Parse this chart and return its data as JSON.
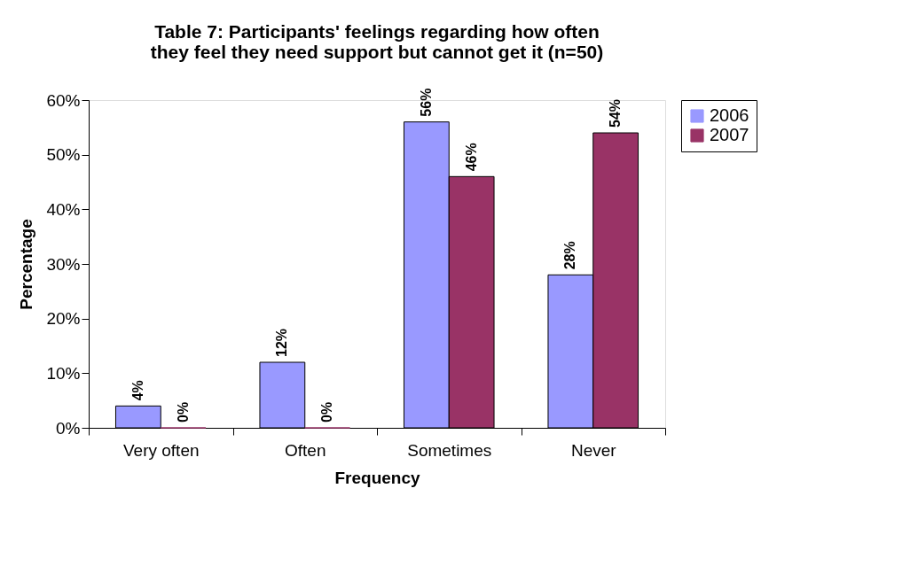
{
  "chart_data": {
    "type": "bar",
    "title": [
      "Table 7: Participants' feelings regarding how often",
      "they feel they need support but cannot get it (n=50)"
    ],
    "xlabel": "Frequency",
    "ylabel": "Percentage",
    "categories": [
      "Very often",
      "Often",
      "Sometimes",
      "Never"
    ],
    "series": [
      {
        "name": "2006",
        "color": "#9999ff",
        "values": [
          4,
          12,
          56,
          28
        ],
        "value_labels": [
          "4%",
          "12%",
          "56%",
          "28%"
        ]
      },
      {
        "name": "2007",
        "color": "#993366",
        "values": [
          0,
          0,
          46,
          54
        ],
        "value_labels": [
          "0%",
          "0%",
          "46%",
          "54%"
        ]
      }
    ],
    "ylim": [
      0,
      60
    ],
    "yticks": [
      {
        "value": 0,
        "label": "0%"
      },
      {
        "value": 10,
        "label": "10%"
      },
      {
        "value": 20,
        "label": "20%"
      },
      {
        "value": 30,
        "label": "30%"
      },
      {
        "value": 40,
        "label": "40%"
      },
      {
        "value": 50,
        "label": "50%"
      },
      {
        "value": 60,
        "label": "60%"
      }
    ],
    "grid": false,
    "legend": "right"
  }
}
